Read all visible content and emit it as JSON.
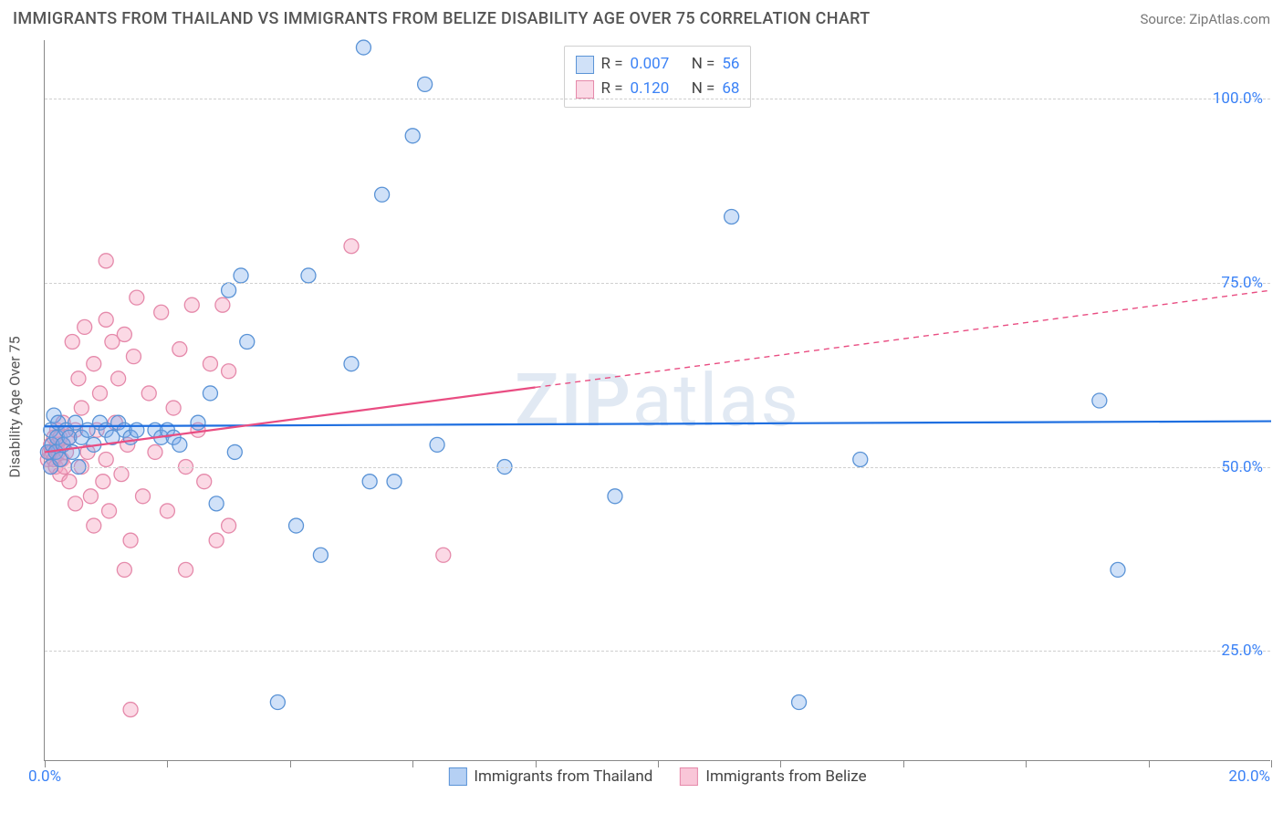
{
  "title": "IMMIGRANTS FROM THAILAND VS IMMIGRANTS FROM BELIZE DISABILITY AGE OVER 75 CORRELATION CHART",
  "source": "Source: ZipAtlas.com",
  "watermark": "ZIPatlas",
  "yaxis_title": "Disability Age Over 75",
  "chart": {
    "type": "scatter-correlation",
    "xlim": [
      0,
      20
    ],
    "ylim": [
      10,
      108
    ],
    "x_ticks": [
      0,
      2,
      4,
      6,
      8,
      10,
      12,
      14,
      16,
      18,
      20
    ],
    "x_tick_labels": {
      "0": "0.0%",
      "20": "20.0%"
    },
    "y_gridlines": [
      25,
      50,
      75,
      100
    ],
    "y_tick_labels": {
      "25": "25.0%",
      "50": "50.0%",
      "75": "75.0%",
      "100": "100.0%"
    },
    "background_color": "#ffffff",
    "grid_color": "#cfcfcf",
    "axis_color": "#888888",
    "tick_label_color": "#3b82f6",
    "marker_radius": 8,
    "marker_stroke_width": 1.3,
    "trendline_width": 2.2,
    "series": [
      {
        "name": "Immigrants from Thailand",
        "fill": "rgba(120,170,235,0.35)",
        "stroke": "#5a93d6",
        "line_color": "#1f6fe0",
        "r_label": "R =",
        "r_value": "0.007",
        "n_label": "N =",
        "n_value": "56",
        "trend": {
          "x1": 0,
          "y1": 55.5,
          "x2": 20,
          "y2": 56.2,
          "dash_from_x": null
        },
        "points": [
          [
            0.05,
            52
          ],
          [
            0.1,
            50
          ],
          [
            0.1,
            55
          ],
          [
            0.12,
            53
          ],
          [
            0.15,
            57
          ],
          [
            0.18,
            52
          ],
          [
            0.2,
            54
          ],
          [
            0.22,
            56
          ],
          [
            0.25,
            51
          ],
          [
            0.3,
            53
          ],
          [
            0.35,
            55
          ],
          [
            0.4,
            54
          ],
          [
            0.45,
            52
          ],
          [
            0.5,
            56
          ],
          [
            0.55,
            50
          ],
          [
            0.6,
            54
          ],
          [
            0.7,
            55
          ],
          [
            0.8,
            53
          ],
          [
            0.9,
            56
          ],
          [
            1.0,
            55
          ],
          [
            1.1,
            54
          ],
          [
            1.2,
            56
          ],
          [
            1.3,
            55
          ],
          [
            1.4,
            54
          ],
          [
            1.5,
            55
          ],
          [
            1.8,
            55
          ],
          [
            1.9,
            54
          ],
          [
            2.0,
            55
          ],
          [
            2.1,
            54
          ],
          [
            2.2,
            53
          ],
          [
            2.5,
            56
          ],
          [
            2.7,
            60
          ],
          [
            2.8,
            45
          ],
          [
            3.0,
            74
          ],
          [
            3.1,
            52
          ],
          [
            3.2,
            76
          ],
          [
            3.3,
            67
          ],
          [
            3.8,
            18
          ],
          [
            4.1,
            42
          ],
          [
            4.3,
            76
          ],
          [
            4.5,
            38
          ],
          [
            5.0,
            64
          ],
          [
            5.2,
            107
          ],
          [
            5.3,
            48
          ],
          [
            5.5,
            87
          ],
          [
            5.7,
            48
          ],
          [
            6.0,
            95
          ],
          [
            6.2,
            102
          ],
          [
            6.4,
            53
          ],
          [
            7.5,
            50
          ],
          [
            9.3,
            46
          ],
          [
            11.2,
            84
          ],
          [
            12.3,
            18
          ],
          [
            13.3,
            51
          ],
          [
            17.2,
            59
          ],
          [
            17.5,
            36
          ]
        ]
      },
      {
        "name": "Immigrants from Belize",
        "fill": "rgba(245,160,190,0.4)",
        "stroke": "#e589aa",
        "line_color": "#e94d82",
        "r_label": "R =",
        "r_value": "0.120",
        "n_label": "N =",
        "n_value": "68",
        "trend": {
          "x1": 0,
          "y1": 52,
          "x2": 20,
          "y2": 74,
          "dash_from_x": 8
        },
        "points": [
          [
            0.05,
            51
          ],
          [
            0.08,
            52
          ],
          [
            0.1,
            50
          ],
          [
            0.1,
            53
          ],
          [
            0.12,
            52
          ],
          [
            0.15,
            51
          ],
          [
            0.15,
            54
          ],
          [
            0.18,
            50
          ],
          [
            0.2,
            53
          ],
          [
            0.2,
            55
          ],
          [
            0.22,
            52
          ],
          [
            0.25,
            49
          ],
          [
            0.25,
            54
          ],
          [
            0.28,
            51
          ],
          [
            0.3,
            53
          ],
          [
            0.3,
            56
          ],
          [
            0.32,
            50
          ],
          [
            0.35,
            52
          ],
          [
            0.4,
            54
          ],
          [
            0.4,
            48
          ],
          [
            0.45,
            67
          ],
          [
            0.5,
            55
          ],
          [
            0.5,
            45
          ],
          [
            0.55,
            62
          ],
          [
            0.6,
            50
          ],
          [
            0.6,
            58
          ],
          [
            0.65,
            69
          ],
          [
            0.7,
            52
          ],
          [
            0.75,
            46
          ],
          [
            0.8,
            64
          ],
          [
            0.8,
            42
          ],
          [
            0.85,
            55
          ],
          [
            0.9,
            60
          ],
          [
            0.95,
            48
          ],
          [
            1.0,
            51
          ],
          [
            1.0,
            70
          ],
          [
            1.05,
            44
          ],
          [
            1.1,
            67
          ],
          [
            1.15,
            56
          ],
          [
            1.2,
            62
          ],
          [
            1.25,
            49
          ],
          [
            1.3,
            68
          ],
          [
            1.35,
            53
          ],
          [
            1.4,
            40
          ],
          [
            1.45,
            65
          ],
          [
            1.5,
            73
          ],
          [
            1.0,
            78
          ],
          [
            1.6,
            46
          ],
          [
            1.7,
            60
          ],
          [
            1.8,
            52
          ],
          [
            1.9,
            71
          ],
          [
            2.0,
            44
          ],
          [
            2.1,
            58
          ],
          [
            2.2,
            66
          ],
          [
            2.3,
            50
          ],
          [
            2.4,
            72
          ],
          [
            2.5,
            55
          ],
          [
            2.6,
            48
          ],
          [
            2.3,
            36
          ],
          [
            2.8,
            40
          ],
          [
            3.0,
            42
          ],
          [
            2.7,
            64
          ],
          [
            3.0,
            63
          ],
          [
            1.4,
            17
          ],
          [
            1.3,
            36
          ],
          [
            5.0,
            80
          ],
          [
            6.5,
            38
          ],
          [
            2.9,
            72
          ]
        ]
      }
    ]
  },
  "legend_bottom": [
    {
      "label": "Immigrants from Thailand",
      "fill": "rgba(120,170,235,0.55)",
      "stroke": "#5a93d6"
    },
    {
      "label": "Immigrants from Belize",
      "fill": "rgba(245,160,190,0.6)",
      "stroke": "#e589aa"
    }
  ]
}
